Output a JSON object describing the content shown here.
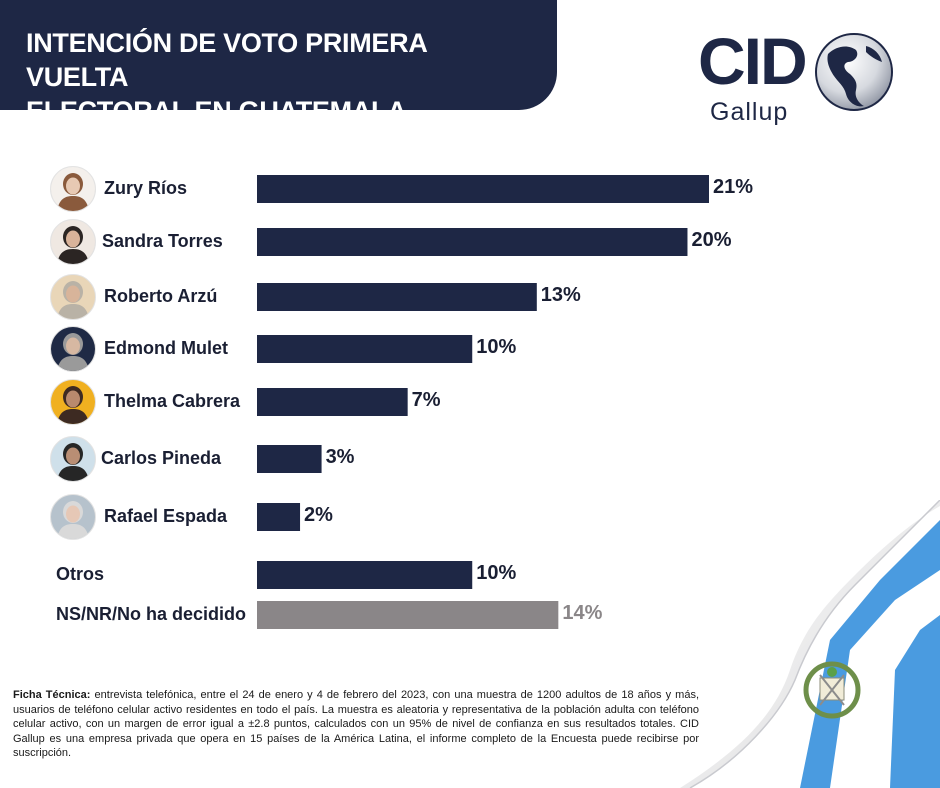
{
  "header": {
    "title_line1": "INTENCIÓN DE VOTO PRIMERA VUELTA",
    "title_line2": "ELECTORAL EN GUATEMALA"
  },
  "logo": {
    "brand": "CID",
    "sub": "Gallup"
  },
  "colors": {
    "navy": "#1e2745",
    "bar_main": "#1e2745",
    "bar_undecided": "#8a8688",
    "flag_blue": "#4a9be0"
  },
  "chart_data": {
    "type": "bar",
    "orientation": "horizontal",
    "categories": [
      "Zury Ríos",
      "Sandra Torres",
      "Roberto Arzú",
      "Edmond Mulet",
      "Thelma Cabrera",
      "Carlos Pineda",
      "Rafael Espada",
      "Otros",
      "NS/NR/No ha decidido"
    ],
    "values": [
      21,
      20,
      13,
      10,
      7,
      3,
      2,
      10,
      14
    ],
    "value_labels": [
      "21%",
      "20%",
      "13%",
      "10%",
      "7%",
      "3%",
      "2%",
      "10%",
      "14%"
    ],
    "has_photo": [
      true,
      true,
      true,
      true,
      true,
      true,
      true,
      false,
      false
    ],
    "bar_colors": [
      "#1e2745",
      "#1e2745",
      "#1e2745",
      "#1e2745",
      "#1e2745",
      "#1e2745",
      "#1e2745",
      "#1e2745",
      "#8a8688"
    ],
    "title": "INTENCIÓN DE VOTO PRIMERA VUELTA ELECTORAL EN GUATEMALA",
    "xlabel": "",
    "ylabel": "",
    "xlim": [
      0,
      21
    ],
    "grid": false,
    "legend": "none"
  },
  "footer": {
    "label": "Ficha Técnica:",
    "text": " entrevista telefónica, entre el 24 de enero y 4 de febrero del 2023, con una muestra de 1200 adultos de 18 años y más, usuarios de teléfono celular activo residentes en todo el país. La muestra es aleatoria y representativa de la población adulta con teléfono celular activo, con un margen de error igual a ±2.8 puntos, calculados con un 95% de nivel de confianza en sus resultados totales. CID Gallup es una empresa privada que opera en 15 países de la América Latina, el informe completo de la Encuesta puede recibirse por suscripción."
  },
  "icons": {
    "avatar": "person-photo-icon",
    "globe": "globe-icon",
    "flag": "guatemala-flag-icon"
  }
}
